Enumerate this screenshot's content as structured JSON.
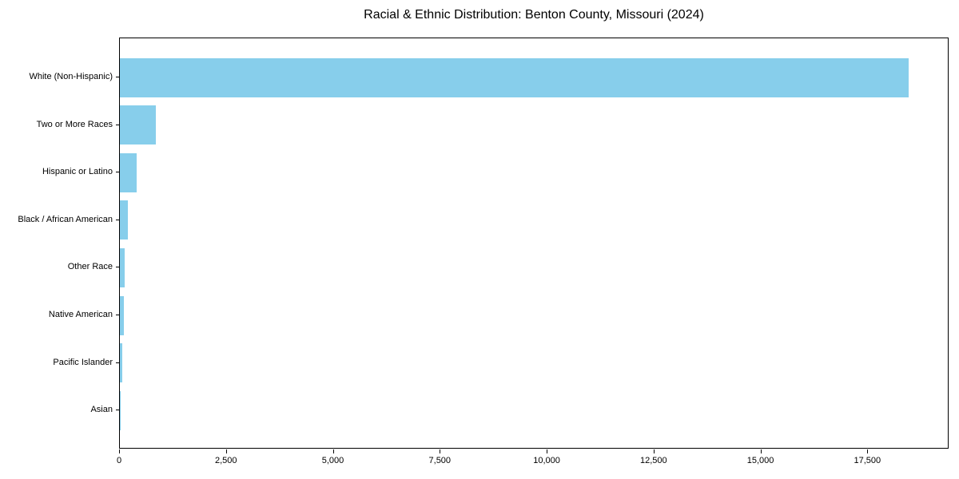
{
  "title": "Racial & Ethnic Distribution: Benton County, Missouri (2024)",
  "chart_data": {
    "type": "bar",
    "orientation": "horizontal",
    "title": "Racial & Ethnic Distribution: Benton County, Missouri (2024)",
    "categories": [
      "White (Non-Hispanic)",
      "Two or More Races",
      "Hispanic or Latino",
      "Black / African American",
      "Other Race",
      "Native American",
      "Pacific Islander",
      "Asian"
    ],
    "values": [
      18440,
      840,
      395,
      190,
      110,
      95,
      55,
      5
    ],
    "xlabel": "",
    "ylabel": "",
    "xlim": [
      0,
      19400
    ],
    "xticks": [
      0,
      2500,
      5000,
      7500,
      10000,
      12500,
      15000,
      17500
    ],
    "xtick_labels": [
      "0",
      "2,500",
      "5,000",
      "7,500",
      "10,000",
      "12,500",
      "15,000",
      "17,500"
    ],
    "grid": false,
    "legend_position": "none",
    "bar_color": "#87CEEB",
    "axis_color": "#000000",
    "background_color": "#ffffff"
  }
}
